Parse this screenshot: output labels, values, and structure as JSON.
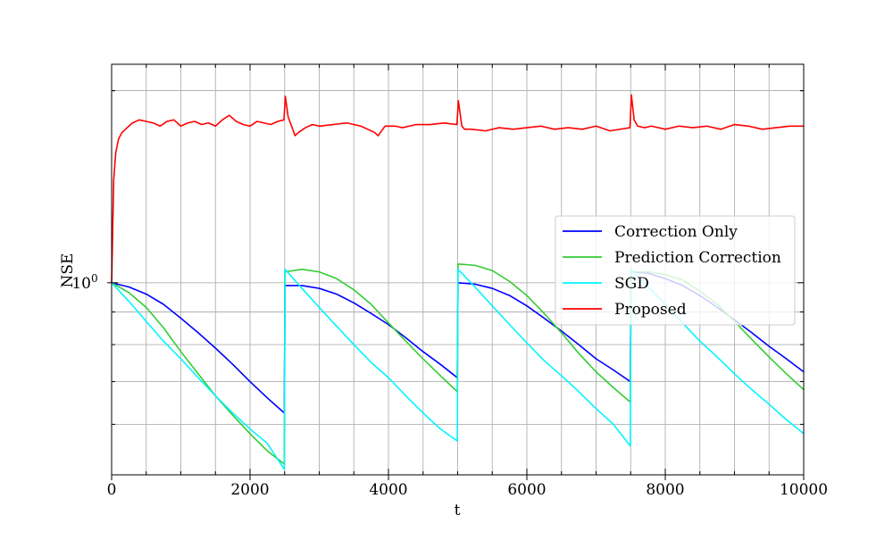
{
  "chart_data": {
    "type": "line",
    "title": "",
    "xlabel": "t",
    "ylabel": "NSE",
    "xlim": [
      0,
      10000
    ],
    "ylim": [
      0.5,
      2.2
    ],
    "yscale": "log",
    "grid": true,
    "legend_position": "center-right",
    "x_ticks": [
      0,
      2000,
      4000,
      6000,
      8000,
      10000
    ],
    "x_tick_labels": [
      "0",
      "2000",
      "4000",
      "6000",
      "8000",
      "10000"
    ],
    "y_tick_labels": [
      {
        "base": "10",
        "exp": "0",
        "value": 1
      }
    ],
    "series": [
      {
        "name": "Correction Only",
        "color": "#0000ff",
        "x": [
          0,
          250,
          500,
          750,
          1000,
          1250,
          1500,
          1750,
          2000,
          2250,
          2495,
          2505,
          2750,
          3000,
          3250,
          3500,
          3750,
          4000,
          4250,
          4500,
          4750,
          4995,
          5005,
          5250,
          5500,
          5750,
          6000,
          6250,
          6500,
          6750,
          7000,
          7250,
          7495,
          7505,
          7750,
          8000,
          8250,
          8500,
          8750,
          9000,
          9250,
          9500,
          9750,
          10000
        ],
        "y": [
          1.0,
          0.985,
          0.96,
          0.925,
          0.88,
          0.835,
          0.79,
          0.745,
          0.7,
          0.66,
          0.625,
          0.99,
          0.99,
          0.98,
          0.96,
          0.93,
          0.895,
          0.86,
          0.82,
          0.78,
          0.745,
          0.71,
          1.0,
          0.995,
          0.98,
          0.955,
          0.92,
          0.88,
          0.84,
          0.8,
          0.76,
          0.73,
          0.7,
          1.04,
          1.035,
          1.015,
          0.99,
          0.955,
          0.915,
          0.875,
          0.835,
          0.795,
          0.76,
          0.725
        ]
      },
      {
        "name": "Prediction Correction",
        "color": "#33cc33",
        "x": [
          0,
          250,
          500,
          750,
          1000,
          1250,
          1500,
          1750,
          2000,
          2250,
          2495,
          2505,
          2750,
          3000,
          3250,
          3500,
          3750,
          4000,
          4250,
          4500,
          4750,
          4995,
          5005,
          5250,
          5500,
          5750,
          6000,
          6250,
          6500,
          6750,
          7000,
          7250,
          7495,
          7505,
          7750,
          8000,
          8250,
          8500,
          8750,
          9000,
          9250,
          9500,
          9750,
          10000
        ],
        "y": [
          1.0,
          0.965,
          0.915,
          0.85,
          0.78,
          0.72,
          0.665,
          0.62,
          0.58,
          0.545,
          0.52,
          1.04,
          1.05,
          1.04,
          1.015,
          0.975,
          0.925,
          0.865,
          0.81,
          0.76,
          0.715,
          0.675,
          1.07,
          1.065,
          1.045,
          1.005,
          0.955,
          0.895,
          0.835,
          0.775,
          0.725,
          0.685,
          0.65,
          1.04,
          1.04,
          1.03,
          1.01,
          0.97,
          0.925,
          0.87,
          0.815,
          0.765,
          0.72,
          0.68
        ]
      },
      {
        "name": "SGD",
        "color": "#00f5ff",
        "x": [
          0,
          250,
          500,
          750,
          1000,
          1250,
          1500,
          1750,
          2000,
          2250,
          2495,
          2505,
          2750,
          3000,
          3250,
          3500,
          3750,
          4000,
          4250,
          4500,
          4750,
          4995,
          5005,
          5250,
          5500,
          5750,
          6000,
          6250,
          6500,
          6750,
          7000,
          7250,
          7495,
          7505,
          7750,
          8000,
          8250,
          8500,
          8750,
          9000,
          9250,
          9500,
          9750,
          10000
        ],
        "y": [
          1.0,
          0.935,
          0.87,
          0.81,
          0.76,
          0.71,
          0.665,
          0.625,
          0.59,
          0.56,
          0.51,
          1.05,
          0.98,
          0.915,
          0.855,
          0.8,
          0.75,
          0.71,
          0.665,
          0.625,
          0.59,
          0.565,
          1.05,
          0.985,
          0.92,
          0.86,
          0.805,
          0.755,
          0.715,
          0.675,
          0.635,
          0.6,
          0.555,
          1.05,
          0.985,
          0.925,
          0.865,
          0.81,
          0.765,
          0.72,
          0.68,
          0.645,
          0.61,
          0.58
        ]
      },
      {
        "name": "Proposed",
        "color": "#ff0000",
        "x": [
          0,
          30,
          60,
          100,
          150,
          200,
          300,
          400,
          500,
          600,
          700,
          800,
          900,
          1000,
          1100,
          1200,
          1300,
          1400,
          1500,
          1600,
          1700,
          1800,
          1900,
          2000,
          2100,
          2200,
          2300,
          2400,
          2490,
          2510,
          2550,
          2600,
          2650,
          2700,
          2800,
          2900,
          3000,
          3200,
          3400,
          3600,
          3800,
          3850,
          3950,
          4100,
          4200,
          4400,
          4600,
          4800,
          4990,
          5010,
          5060,
          5100,
          5200,
          5400,
          5600,
          5800,
          6000,
          6200,
          6400,
          6600,
          6800,
          7000,
          7200,
          7490,
          7510,
          7550,
          7600,
          7700,
          7800,
          8000,
          8200,
          8400,
          8600,
          8800,
          9000,
          9200,
          9400,
          9600,
          9800,
          10000
        ],
        "y": [
          1.0,
          1.45,
          1.6,
          1.68,
          1.72,
          1.74,
          1.78,
          1.8,
          1.79,
          1.78,
          1.76,
          1.79,
          1.8,
          1.76,
          1.78,
          1.79,
          1.77,
          1.78,
          1.76,
          1.8,
          1.83,
          1.79,
          1.77,
          1.76,
          1.79,
          1.78,
          1.77,
          1.79,
          1.8,
          1.96,
          1.82,
          1.76,
          1.7,
          1.72,
          1.75,
          1.77,
          1.76,
          1.77,
          1.78,
          1.76,
          1.72,
          1.7,
          1.76,
          1.76,
          1.75,
          1.77,
          1.77,
          1.78,
          1.77,
          1.93,
          1.76,
          1.74,
          1.74,
          1.73,
          1.75,
          1.74,
          1.75,
          1.76,
          1.74,
          1.75,
          1.74,
          1.76,
          1.73,
          1.75,
          1.97,
          1.8,
          1.76,
          1.75,
          1.76,
          1.74,
          1.76,
          1.75,
          1.76,
          1.74,
          1.77,
          1.76,
          1.74,
          1.75,
          1.76,
          1.76
        ]
      }
    ]
  }
}
